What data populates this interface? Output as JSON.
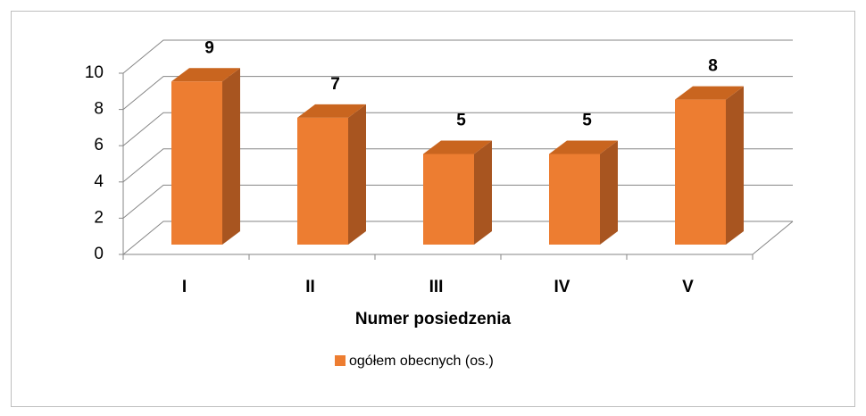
{
  "chart_data": {
    "type": "bar3d",
    "categories": [
      "I",
      "II",
      "III",
      "IV",
      "V"
    ],
    "series": [
      {
        "name": "ogółem obecnych (os.)",
        "color": "#ed7d31",
        "values": [
          9,
          7,
          5,
          5,
          8
        ]
      }
    ],
    "xlabel": "Numer posiedzenia",
    "ylim": [
      0,
      10
    ],
    "yticks": [
      0,
      2,
      4,
      6,
      8,
      10
    ],
    "grid": true,
    "legend": "bottom"
  }
}
